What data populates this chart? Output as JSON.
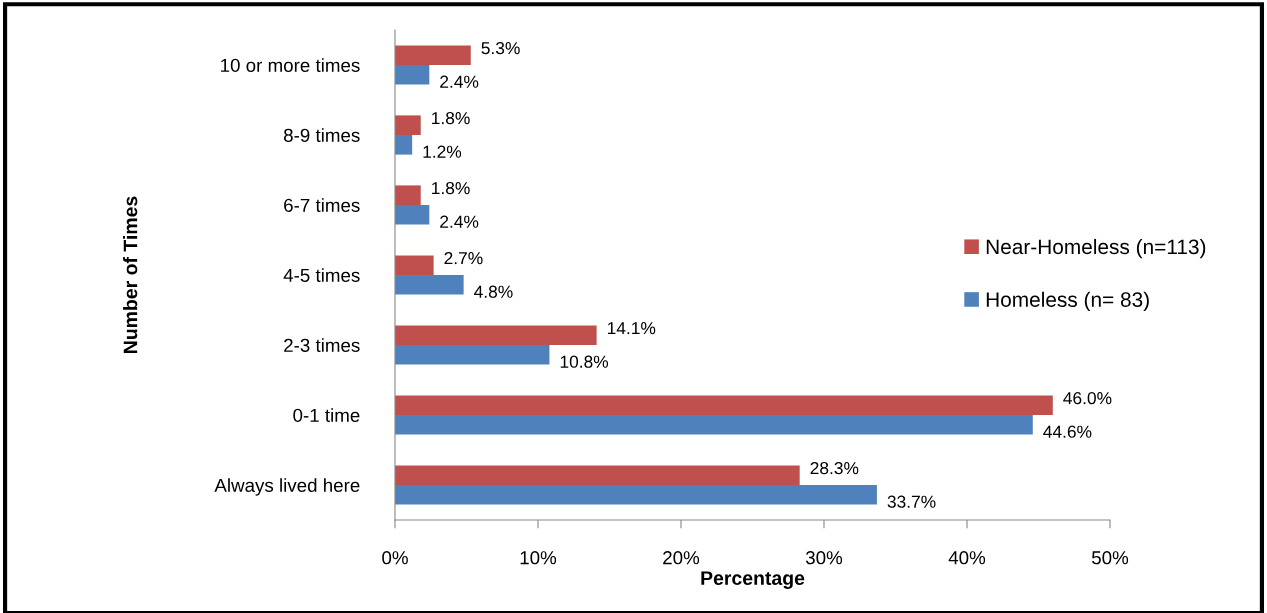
{
  "chart_data": {
    "type": "bar",
    "orientation": "horizontal",
    "xlabel": "Percentage",
    "ylabel": "Number of Times",
    "categories": [
      "10 or more times",
      "8-9 times",
      "6-7 times",
      "4-5 times",
      "2-3 times",
      "0-1 time",
      "Always lived here"
    ],
    "series": [
      {
        "name": "Near-Homeless (n=113)",
        "color": "#c0504d",
        "values": [
          5.3,
          1.8,
          1.8,
          2.7,
          14.1,
          46.0,
          28.3
        ],
        "value_labels": [
          "5.3%",
          "1.8%",
          "1.8%",
          "2.7%",
          "14.1%",
          "46.0%",
          "28.3%"
        ]
      },
      {
        "name": "Homeless (n= 83)",
        "color": "#4f81bd",
        "values": [
          2.4,
          1.2,
          2.4,
          4.8,
          10.8,
          44.6,
          33.7
        ],
        "value_labels": [
          "2.4%",
          "1.2%",
          "2.4%",
          "4.8%",
          "10.8%",
          "44.6%",
          "33.7%"
        ]
      }
    ],
    "xlim": [
      0,
      50
    ],
    "xticks": [
      {
        "value": 0,
        "label": "0%"
      },
      {
        "value": 10,
        "label": "10%"
      },
      {
        "value": 20,
        "label": "20%"
      },
      {
        "value": 30,
        "label": "30%"
      },
      {
        "value": 40,
        "label": "40%"
      },
      {
        "value": 50,
        "label": "50%"
      }
    ],
    "grid": false,
    "legend": "right"
  }
}
